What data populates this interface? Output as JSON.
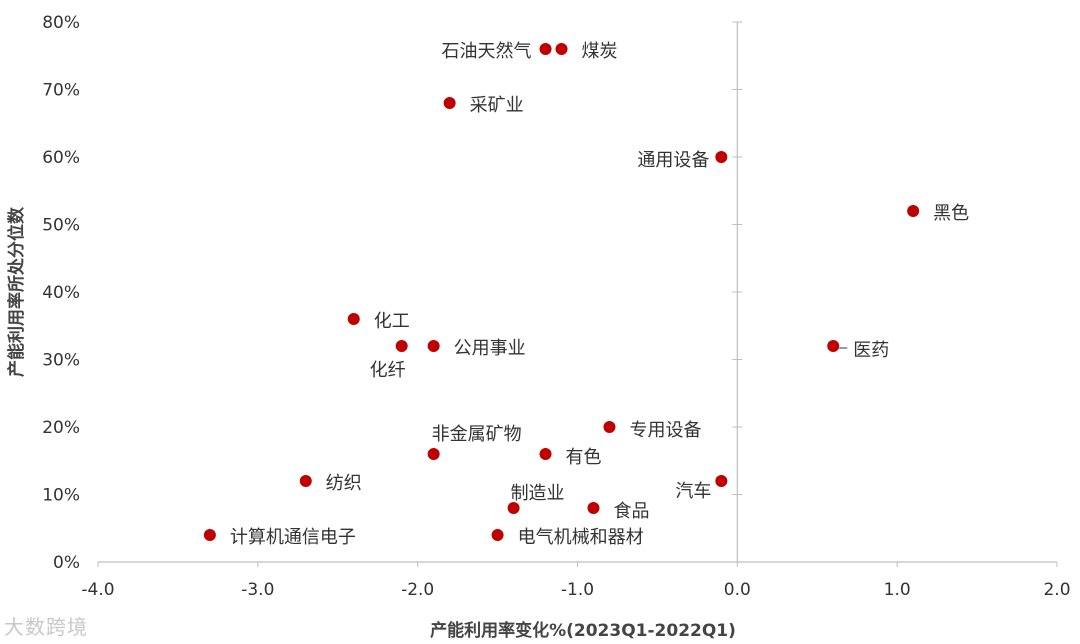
{
  "chart_data": {
    "type": "scatter",
    "xlabel": "产能利用率变化%(2023Q1-2022Q1)",
    "ylabel": "产能利用率所处分位数",
    "xlim": [
      -4.0,
      2.0
    ],
    "ylim": [
      0,
      80
    ],
    "x_ticks": [
      "-4.0",
      "-3.0",
      "-2.0",
      "-1.0",
      "0.0",
      "1.0",
      "2.0"
    ],
    "y_ticks": [
      "0%",
      "10%",
      "20%",
      "30%",
      "40%",
      "50%",
      "60%",
      "70%",
      "80%"
    ],
    "grid": false,
    "marker_color": "#C00000",
    "points": [
      {
        "label": "石油天然气",
        "x": -1.2,
        "y": 76
      },
      {
        "label": "煤炭",
        "x": -1.1,
        "y": 76
      },
      {
        "label": "采矿业",
        "x": -1.8,
        "y": 68
      },
      {
        "label": "通用设备",
        "x": -0.1,
        "y": 60
      },
      {
        "label": "黑色",
        "x": 1.1,
        "y": 52
      },
      {
        "label": "化工",
        "x": -2.4,
        "y": 36
      },
      {
        "label": "化纤",
        "x": -2.1,
        "y": 32
      },
      {
        "label": "公用事业",
        "x": -1.9,
        "y": 32
      },
      {
        "label": "医药",
        "x": 0.6,
        "y": 32
      },
      {
        "label": "专用设备",
        "x": -0.8,
        "y": 20
      },
      {
        "label": "非金属矿物",
        "x": -1.9,
        "y": 16
      },
      {
        "label": "有色",
        "x": -1.2,
        "y": 16
      },
      {
        "label": "纺织",
        "x": -2.7,
        "y": 12
      },
      {
        "label": "汽车",
        "x": -0.1,
        "y": 12
      },
      {
        "label": "制造业",
        "x": -1.4,
        "y": 8
      },
      {
        "label": "食品",
        "x": -0.9,
        "y": 8
      },
      {
        "label": "计算机通信电子",
        "x": -3.3,
        "y": 4
      },
      {
        "label": "电气机械和器材",
        "x": -1.5,
        "y": 4
      }
    ]
  },
  "watermark": "大数跨境"
}
